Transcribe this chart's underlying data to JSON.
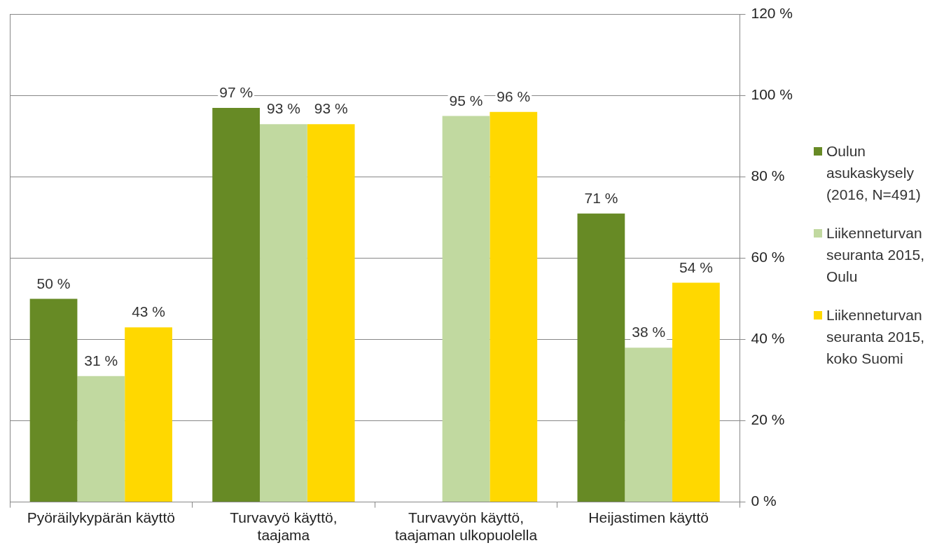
{
  "chart_data": {
    "type": "bar",
    "categories": [
      "Pyöräilykypärän käyttö",
      "Turvavyö käyttö, taajama",
      "Turvavyön käyttö, taajaman ulkopuolella",
      "Heijastimen käyttö"
    ],
    "series": [
      {
        "name": "Oulun asukaskysely (2016, N=491)",
        "color": "#678a25",
        "values": [
          50,
          97,
          null,
          71
        ],
        "value_labels": [
          "50 %",
          "97 %",
          null,
          "71 %"
        ]
      },
      {
        "name": "Liikenneturvan seuranta 2015, Oulu",
        "color": "#c1d9a0",
        "values": [
          31,
          93,
          95,
          38
        ],
        "value_labels": [
          "31 %",
          "93 %",
          "95 %",
          "38 %"
        ]
      },
      {
        "name": "Liikenneturvan seuranta 2015, koko Suomi",
        "color": "#ffd800",
        "values": [
          43,
          93,
          96,
          54
        ],
        "value_labels": [
          "43 %",
          "93 %",
          "96 %",
          "54 %"
        ]
      }
    ],
    "ylim": [
      0,
      120
    ],
    "yticks": [
      {
        "value": 0,
        "label": "0 %"
      },
      {
        "value": 20,
        "label": "20 %"
      },
      {
        "value": 40,
        "label": "40 %"
      },
      {
        "value": 60,
        "label": "60 %"
      },
      {
        "value": 80,
        "label": "80 %"
      },
      {
        "value": 100,
        "label": "100 %"
      },
      {
        "value": 120,
        "label": "120 %"
      }
    ],
    "grid": "y",
    "legend": "right"
  }
}
